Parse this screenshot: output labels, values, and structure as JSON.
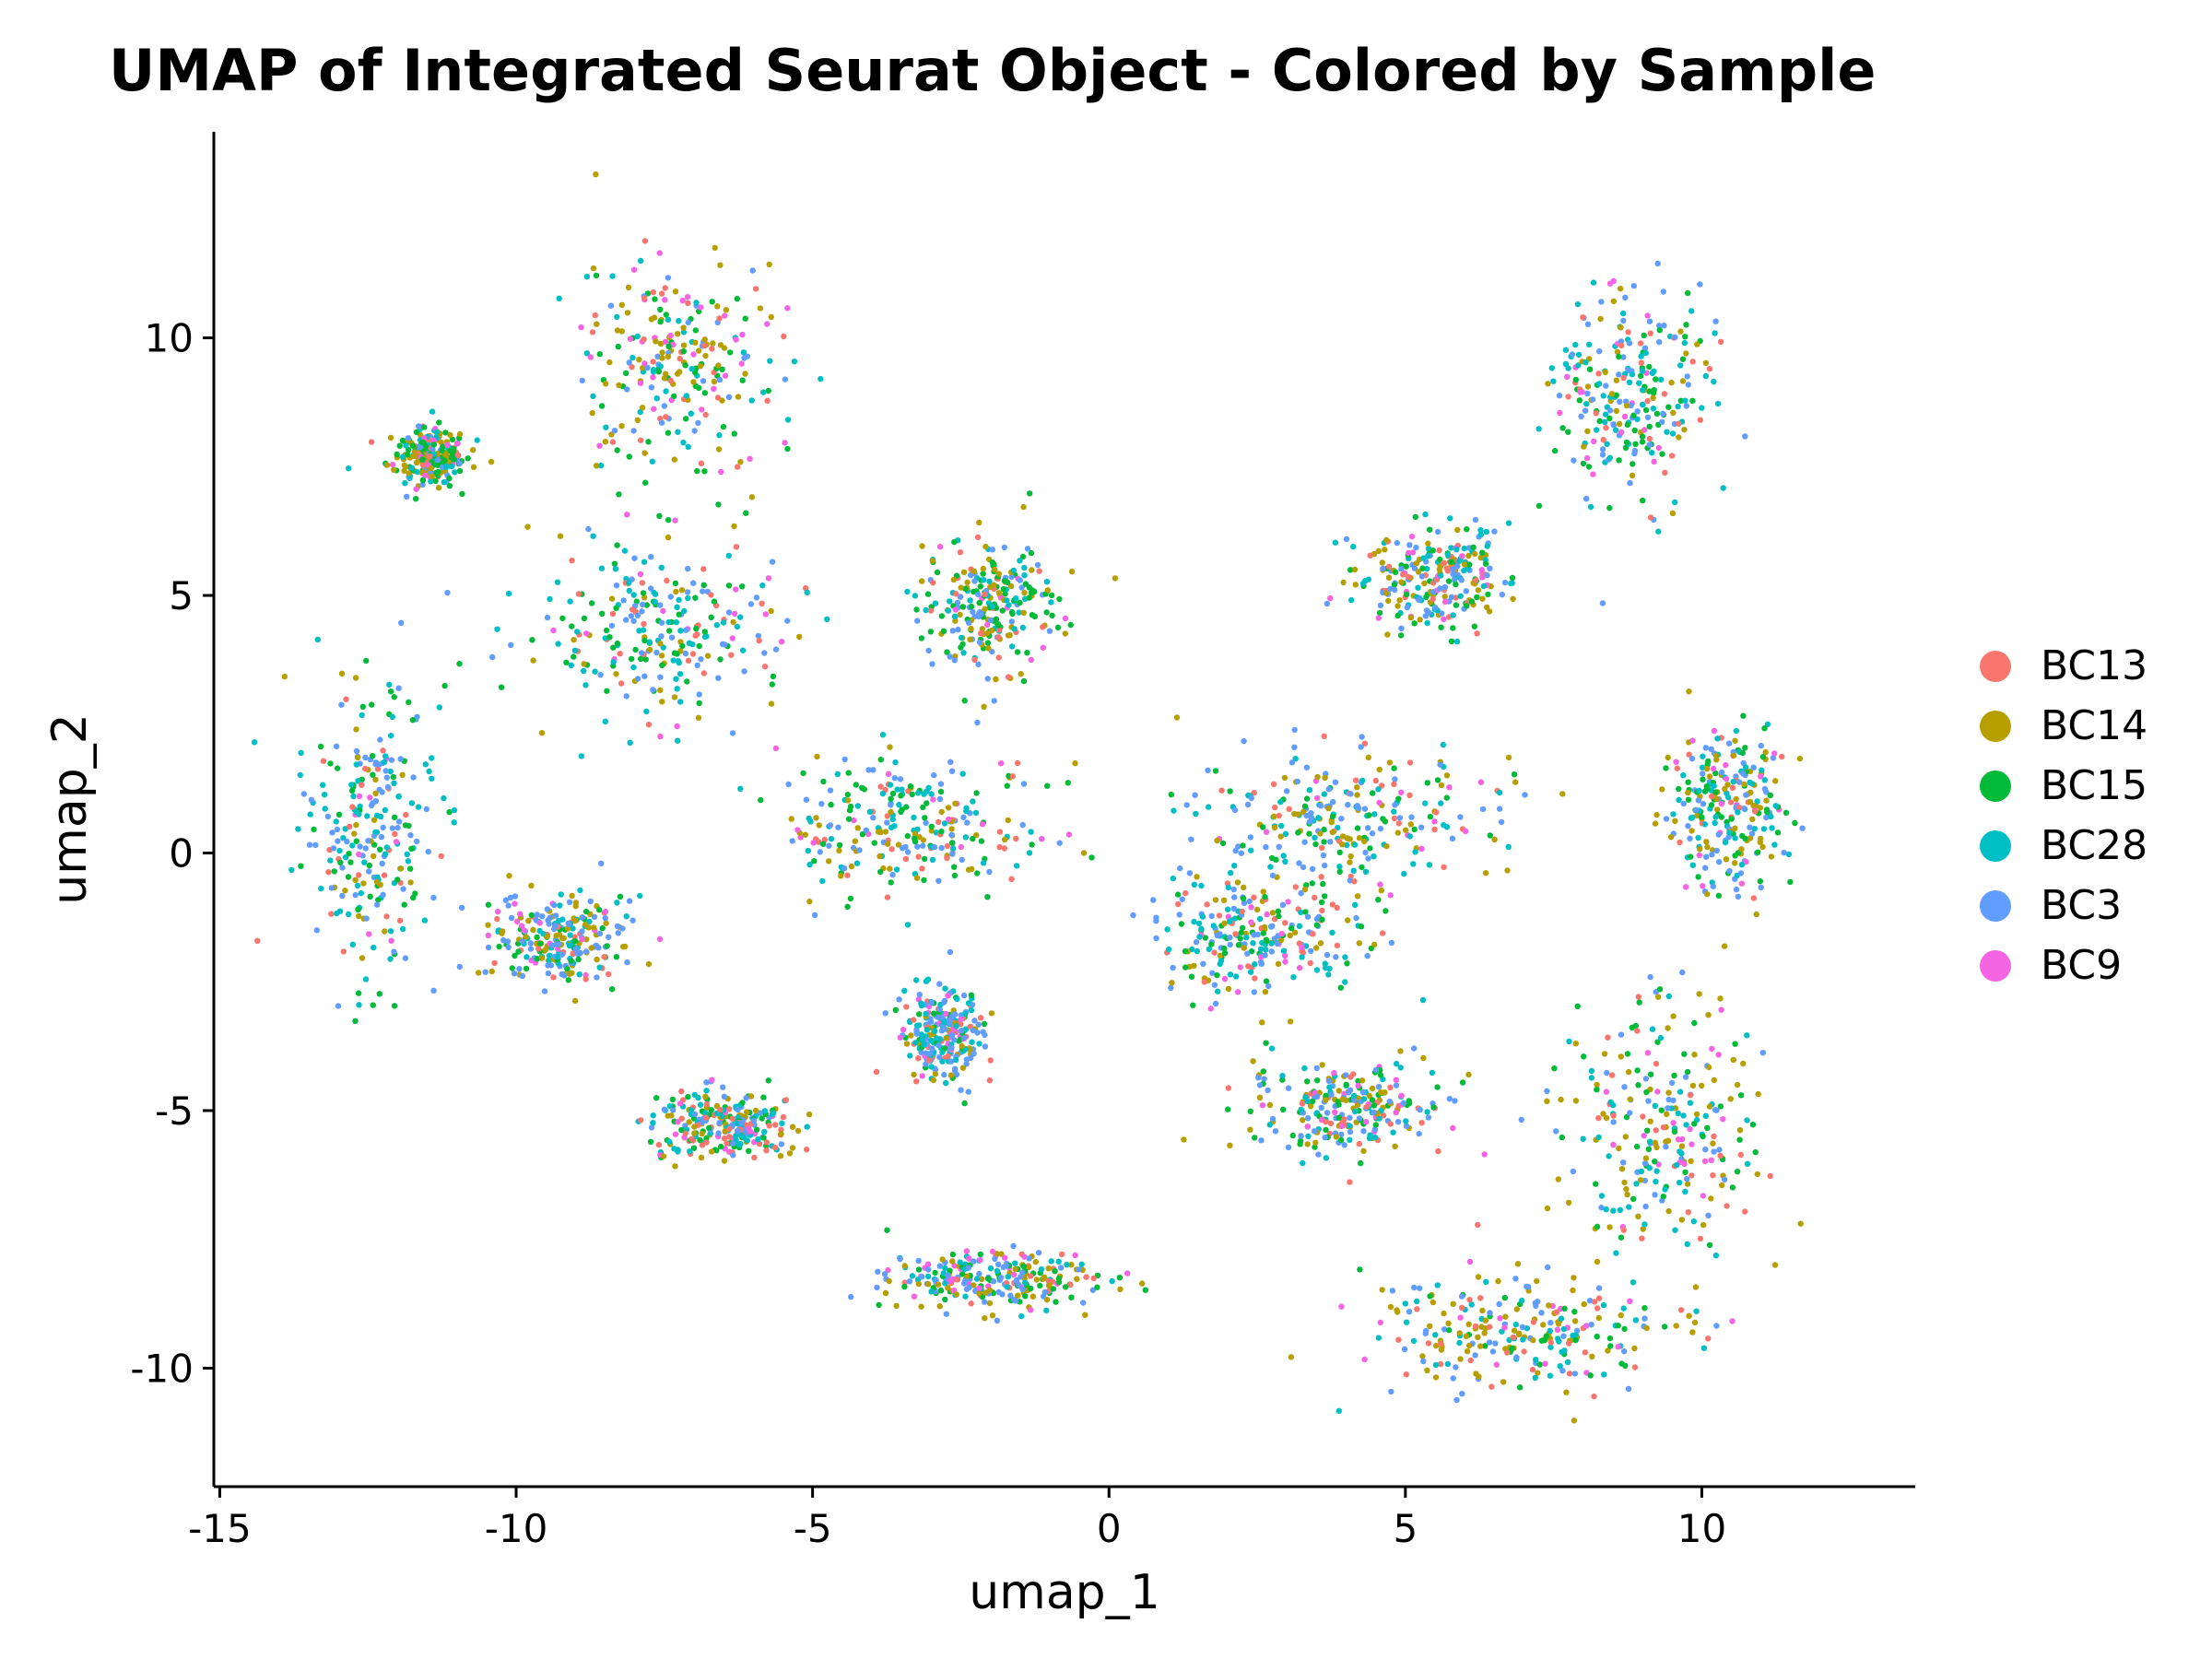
{
  "chart_data": {
    "type": "scatter",
    "title": "UMAP of Integrated Seurat Object - Colored by Sample",
    "xlabel": "umap_1",
    "ylabel": "umap_2",
    "xlim": [
      -15.1,
      13.6
    ],
    "ylim": [
      -12.3,
      14.0
    ],
    "x_ticks": [
      -15,
      -10,
      -5,
      0,
      5,
      10
    ],
    "x_tick_labels": [
      "-15",
      "-10",
      "-5",
      "0",
      "5",
      "10"
    ],
    "y_ticks": [
      -10,
      -5,
      0,
      5,
      10
    ],
    "y_tick_labels": [
      "-10",
      "-5",
      "0",
      "5",
      "10"
    ],
    "grid": false,
    "legend_position": "right",
    "series": [
      {
        "name": "BC13",
        "color": "#F8766D"
      },
      {
        "name": "BC14",
        "color": "#B79F00"
      },
      {
        "name": "BC15",
        "color": "#00BA38"
      },
      {
        "name": "BC28",
        "color": "#00BFC4"
      },
      {
        "name": "BC3",
        "color": "#619CFF"
      },
      {
        "name": "BC9",
        "color": "#F564E3"
      }
    ],
    "clusters": [
      {
        "center": [
          -12.5,
          0.5
        ],
        "spread": [
          1.0,
          2.6
        ],
        "weights": [
          0.08,
          0.12,
          0.18,
          0.28,
          0.28,
          0.06
        ]
      },
      {
        "center": [
          -11.5,
          7.7
        ],
        "spread": [
          0.6,
          0.5
        ],
        "weights": [
          0.1,
          0.25,
          0.3,
          0.15,
          0.12,
          0.08
        ]
      },
      {
        "center": [
          -7.3,
          9.5
        ],
        "spread": [
          1.6,
          1.9
        ],
        "weights": [
          0.12,
          0.25,
          0.22,
          0.15,
          0.16,
          0.1
        ]
      },
      {
        "center": [
          -7.5,
          4.3
        ],
        "spread": [
          2.0,
          1.5
        ],
        "weights": [
          0.08,
          0.15,
          0.2,
          0.3,
          0.22,
          0.05
        ]
      },
      {
        "center": [
          -9.3,
          -1.7
        ],
        "spread": [
          1.0,
          0.8
        ],
        "weights": [
          0.1,
          0.18,
          0.18,
          0.2,
          0.26,
          0.08
        ]
      },
      {
        "center": [
          -3.3,
          0.5
        ],
        "spread": [
          2.0,
          1.3
        ],
        "weights": [
          0.1,
          0.2,
          0.2,
          0.22,
          0.2,
          0.08
        ]
      },
      {
        "center": [
          -2.0,
          4.8
        ],
        "spread": [
          1.0,
          1.2
        ],
        "weights": [
          0.08,
          0.2,
          0.32,
          0.2,
          0.15,
          0.05
        ]
      },
      {
        "center": [
          -2.8,
          -3.5
        ],
        "spread": [
          0.6,
          0.8
        ],
        "weights": [
          0.1,
          0.1,
          0.12,
          0.25,
          0.33,
          0.1
        ]
      },
      {
        "center": [
          -6.5,
          -5.3
        ],
        "spread": [
          1.1,
          0.6
        ],
        "weights": [
          0.2,
          0.18,
          0.18,
          0.2,
          0.16,
          0.08
        ]
      },
      {
        "center": [
          4.0,
          0.7
        ],
        "spread": [
          2.2,
          1.1
        ],
        "weights": [
          0.1,
          0.25,
          0.18,
          0.17,
          0.22,
          0.08
        ]
      },
      {
        "center": [
          5.5,
          5.3
        ],
        "spread": [
          1.2,
          0.9
        ],
        "weights": [
          0.1,
          0.22,
          0.2,
          0.2,
          0.2,
          0.08
        ]
      },
      {
        "center": [
          8.8,
          9.0
        ],
        "spread": [
          1.2,
          2.0
        ],
        "weights": [
          0.08,
          0.12,
          0.2,
          0.25,
          0.28,
          0.07
        ]
      },
      {
        "center": [
          10.4,
          0.8
        ],
        "spread": [
          0.9,
          1.4
        ],
        "weights": [
          0.08,
          0.2,
          0.2,
          0.2,
          0.24,
          0.08
        ]
      },
      {
        "center": [
          4.0,
          -4.9
        ],
        "spread": [
          1.5,
          0.8
        ],
        "weights": [
          0.1,
          0.22,
          0.2,
          0.18,
          0.22,
          0.08
        ]
      },
      {
        "center": [
          -2.0,
          -8.3
        ],
        "spread": [
          1.6,
          0.5
        ],
        "weights": [
          0.1,
          0.2,
          0.18,
          0.18,
          0.26,
          0.08
        ]
      },
      {
        "center": [
          2.5,
          -1.6
        ],
        "spread": [
          1.6,
          1.0
        ],
        "weights": [
          0.1,
          0.18,
          0.18,
          0.22,
          0.24,
          0.08
        ]
      },
      {
        "center": [
          7.0,
          -9.3
        ],
        "spread": [
          2.5,
          1.0
        ],
        "weights": [
          0.1,
          0.3,
          0.15,
          0.18,
          0.2,
          0.07
        ]
      },
      {
        "center": [
          9.3,
          -5.4
        ],
        "spread": [
          1.5,
          2.4
        ],
        "weights": [
          0.08,
          0.28,
          0.15,
          0.2,
          0.22,
          0.07
        ]
      }
    ]
  }
}
